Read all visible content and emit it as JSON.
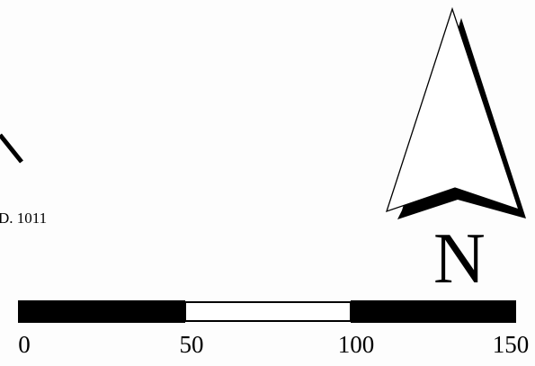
{
  "map": {
    "feature_label": "D. 1011",
    "north_arrow": {
      "letter": "N",
      "icon": "north-arrow-icon"
    },
    "scale_bar": {
      "ticks": [
        "0",
        "50",
        "100",
        "150"
      ],
      "segments": [
        {
          "from": 0,
          "to": 50,
          "fill": "#000000"
        },
        {
          "from": 50,
          "to": 100,
          "fill": "#ffffff"
        },
        {
          "from": 100,
          "to": 150,
          "fill": "#000000"
        }
      ]
    }
  }
}
